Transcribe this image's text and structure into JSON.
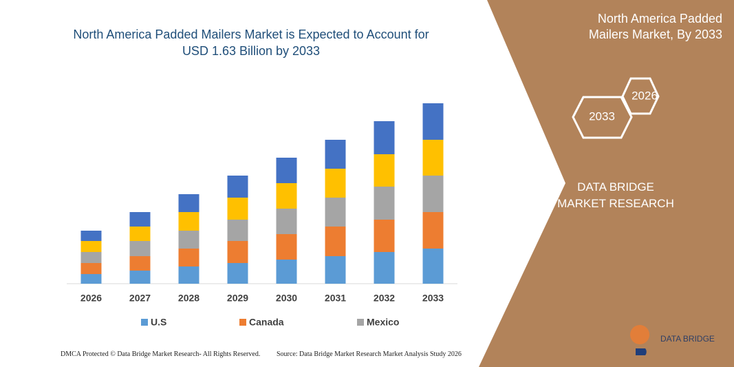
{
  "chart_data": {
    "type": "bar",
    "stacked": true,
    "title": "North America Padded Mailers Market is Expected to Account for USD 1.63 Billion by 2033",
    "categories": [
      "2026",
      "2027",
      "2028",
      "2029",
      "2030",
      "2031",
      "2032",
      "2033"
    ],
    "series": [
      {
        "name": "U.S",
        "color": "#5b9bd5",
        "values": [
          14,
          19,
          25,
          30,
          35,
          40,
          46,
          51
        ]
      },
      {
        "name": "Canada",
        "color": "#ed7d31",
        "values": [
          16,
          21,
          26,
          32,
          37,
          43,
          47,
          53
        ]
      },
      {
        "name": "Mexico",
        "color": "#a5a5a5",
        "values": [
          16,
          22,
          26,
          31,
          37,
          42,
          48,
          53
        ]
      },
      {
        "color": "#ffc000",
        "values": [
          16,
          21,
          27,
          32,
          37,
          42,
          47,
          52
        ]
      },
      {
        "color": "#4472c4",
        "values": [
          15,
          21,
          26,
          32,
          37,
          42,
          48,
          53
        ]
      }
    ],
    "ylim": [
      0,
      262
    ]
  },
  "panel": {
    "title": "North America Padded Mailers Market, By 2033",
    "hex_labels": [
      "2026",
      "2033"
    ],
    "brand": "DATA BRIDGE MARKET RESEARCH",
    "logo": "DATA BRIDGE"
  },
  "footer": {
    "left": "DMCA Protected © Data Bridge Market Research- All Rights Reserved.",
    "right": "Source: Data Bridge Market Research Market Analysis Study 2026"
  }
}
